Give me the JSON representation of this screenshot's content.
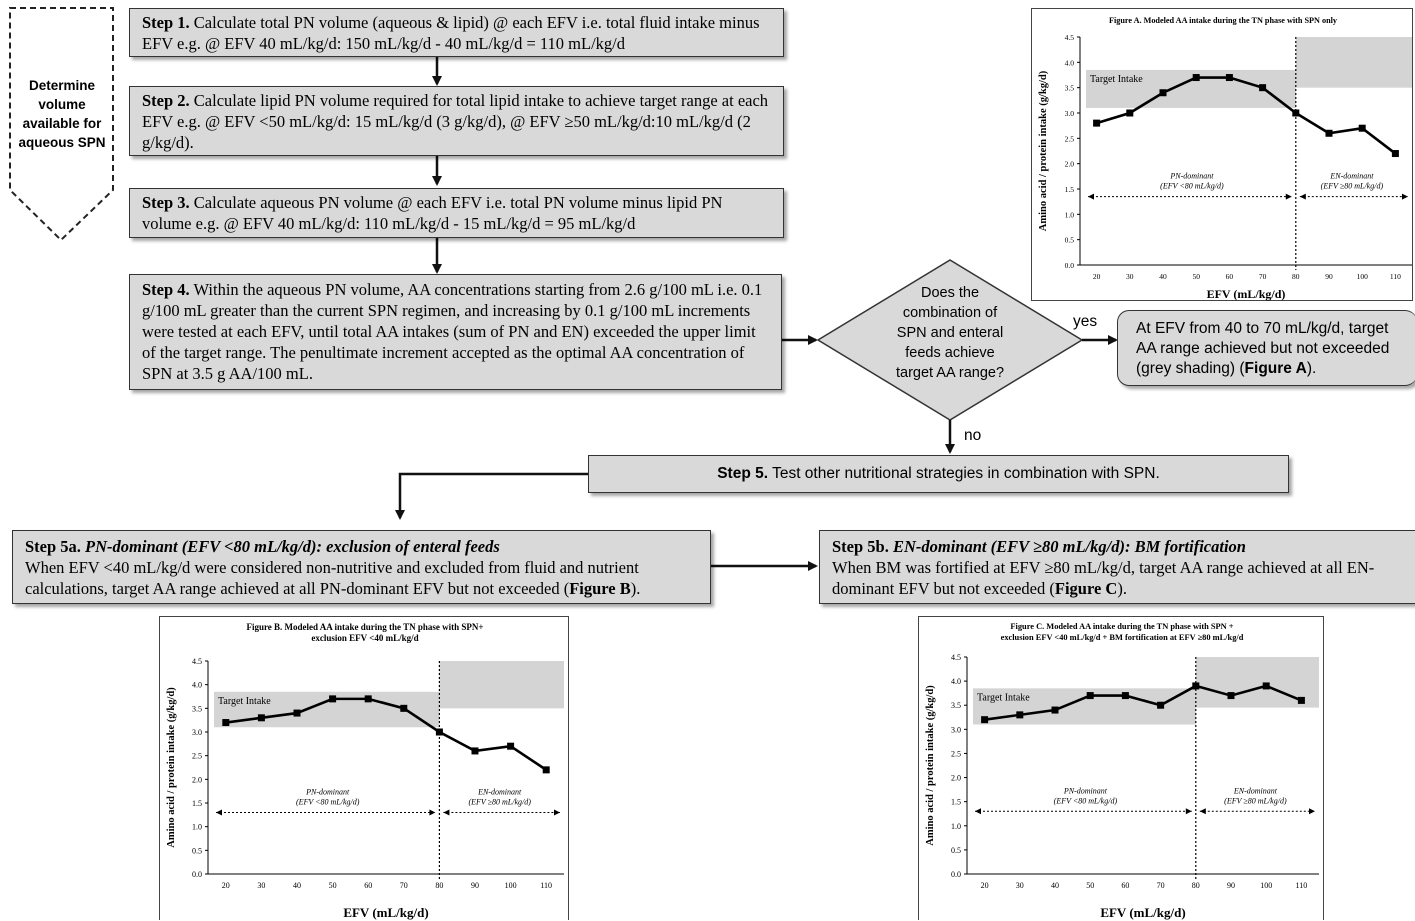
{
  "determine_label": "Determine volume available for aqueous SPN",
  "steps": {
    "step1": {
      "title": "Step 1.",
      "text": "Calculate total PN volume (aqueous & lipid) @ each EFV i.e. total fluid intake minus EFV e.g. @ EFV 40 mL/kg/d: 150 mL/kg/d - 40 mL/kg/d = 110 mL/kg/d"
    },
    "step2": {
      "title": "Step 2.",
      "text": "Calculate lipid PN volume required for total lipid intake to achieve target range at each EFV e.g. @ EFV <50 mL/kg/d: 15 mL/kg/d (3 g/kg/d), @ EFV ≥50 mL/kg/d:10 mL/kg/d (2 g/kg/d)."
    },
    "step3": {
      "title": "Step 3.",
      "text": "Calculate aqueous PN volume @ each EFV i.e. total PN volume minus lipid PN volume e.g. @ EFV 40 mL/kg/d: 110 mL/kg/d - 15 mL/kg/d = 95 mL/kg/d"
    },
    "step4": {
      "title": "Step 4.",
      "text": "Within the aqueous PN volume, AA concentrations starting from 2.6 g/100 mL i.e. 0.1 g/100 mL greater than the current SPN regimen, and increasing by 0.1 g/100 mL increments were tested at each EFV, until total AA intakes (sum of PN and EN) exceeded the upper limit of the target range. The penultimate increment accepted as the optimal AA concentration of SPN at 3.5 g AA/100 mL."
    },
    "step5": {
      "title": "Step 5.",
      "text": "Test other nutritional strategies in combination with SPN."
    },
    "step5a": {
      "title": "Step 5a.",
      "title_italic": "PN-dominant (EFV <80 mL/kg/d): exclusion of enteral feeds",
      "text": "When EFV <40 mL/kg/d were considered non-nutritive and excluded from fluid and nutrient calculations, target AA range achieved at all PN-dominant EFV but not exceeded (",
      "text_bold": "Figure B",
      "text_end": ")."
    },
    "step5b": {
      "title": "Step 5b.",
      "title_italic": "EN-dominant (EFV ≥80 mL/kg/d): BM fortification",
      "text": "When BM was fortified at EFV ≥80 mL/kg/d, target AA range achieved at all EN-dominant EFV but not exceeded (",
      "text_bold": "Figure C",
      "text_end": ")."
    }
  },
  "decision": {
    "question": "Does the combination of SPN and enteral feeds achieve target AA range?",
    "yes_label": "yes",
    "no_label": "no"
  },
  "outcome": {
    "text": "At EFV from 40 to 70 mL/kg/d, target AA range achieved but not exceeded (grey shading) (",
    "bold": "Figure A",
    "end": ")."
  },
  "chart_data": [
    {
      "id": "A",
      "type": "line",
      "title": "Figure A. Modeled AA intake during the TN phase with SPN only",
      "xlabel": "EFV (mL/kg/d)",
      "ylabel": "Amino acid / protein intake (g/kg/d)",
      "x": [
        20,
        30,
        40,
        50,
        60,
        70,
        80,
        90,
        100,
        110
      ],
      "series": [
        {
          "values": [
            2.8,
            3.0,
            3.4,
            3.7,
            3.7,
            3.5,
            3.0,
            2.6,
            2.7,
            2.2
          ]
        }
      ],
      "ylim": [
        0,
        4.5
      ],
      "xlim": [
        15,
        115
      ],
      "yticks": [
        0.0,
        0.5,
        1.0,
        1.5,
        2.0,
        2.5,
        3.0,
        3.5,
        4.0,
        4.5
      ],
      "xticks": [
        20,
        30,
        40,
        50,
        60,
        70,
        80,
        90,
        100,
        110
      ],
      "target_label": "Target Intake",
      "target_pn": [
        3.1,
        3.85
      ],
      "target_en": [
        3.5,
        4.5
      ],
      "divider_x": 80,
      "pn_label": "PN-dominant",
      "pn_sub": "(EFV <80 mL/kg/d)",
      "en_label": "EN-dominant",
      "en_sub": "(EFV ≥80 mL/kg/d)",
      "region_y": 1.35
    },
    {
      "id": "B",
      "type": "line",
      "title": "Figure B. Modeled AA intake during the TN phase with SPN+ exclusion EFV <40 mL/kg/d",
      "xlabel": "EFV (mL/kg/d)",
      "ylabel": "Amino acid / protein intake (g/kg/d)",
      "x": [
        20,
        30,
        40,
        50,
        60,
        70,
        80,
        90,
        100,
        110
      ],
      "series": [
        {
          "values": [
            3.2,
            3.3,
            3.4,
            3.7,
            3.7,
            3.5,
            3.0,
            2.6,
            2.7,
            2.2
          ]
        }
      ],
      "ylim": [
        0,
        4.5
      ],
      "xlim": [
        15,
        115
      ],
      "yticks": [
        0.0,
        0.5,
        1.0,
        1.5,
        2.0,
        2.5,
        3.0,
        3.5,
        4.0,
        4.5
      ],
      "xticks": [
        20,
        30,
        40,
        50,
        60,
        70,
        80,
        90,
        100,
        110
      ],
      "target_label": "Target Intake",
      "target_pn": [
        3.1,
        3.85
      ],
      "target_en": [
        3.5,
        4.5
      ],
      "divider_x": 80,
      "pn_label": "PN-dominant",
      "pn_sub": "(EFV <80 mL/kg/d)",
      "en_label": "EN-dominant",
      "en_sub": "(EFV ≥80 mL/kg/d)",
      "region_y": 1.3
    },
    {
      "id": "C",
      "type": "line",
      "title": "Figure C. Modeled AA intake during the TN phase with SPN + exclusion EFV <40 mL/kg/d + BM fortification at EFV ≥80 mL/kg/d",
      "xlabel": "EFV (mL/kg/d)",
      "ylabel": "Amino acid / protein intake (g/kg/d)",
      "x": [
        20,
        30,
        40,
        50,
        60,
        70,
        80,
        90,
        100,
        110
      ],
      "series": [
        {
          "values": [
            3.2,
            3.3,
            3.4,
            3.7,
            3.7,
            3.5,
            3.9,
            3.7,
            3.9,
            3.6
          ]
        }
      ],
      "ylim": [
        0,
        4.5
      ],
      "xlim": [
        15,
        115
      ],
      "yticks": [
        0.0,
        0.5,
        1.0,
        1.5,
        2.0,
        2.5,
        3.0,
        3.5,
        4.0,
        4.5
      ],
      "xticks": [
        20,
        30,
        40,
        50,
        60,
        70,
        80,
        90,
        100,
        110
      ],
      "target_label": "Target Intake",
      "target_pn": [
        3.1,
        3.85
      ],
      "target_en": [
        3.45,
        4.5
      ],
      "divider_x": 80,
      "pn_label": "PN-dominant",
      "pn_sub": "(EFV <80 mL/kg/d)",
      "en_label": "EN-dominant",
      "en_sub": "(EFV ≥80 mL/kg/d)",
      "region_y": 1.3
    }
  ]
}
